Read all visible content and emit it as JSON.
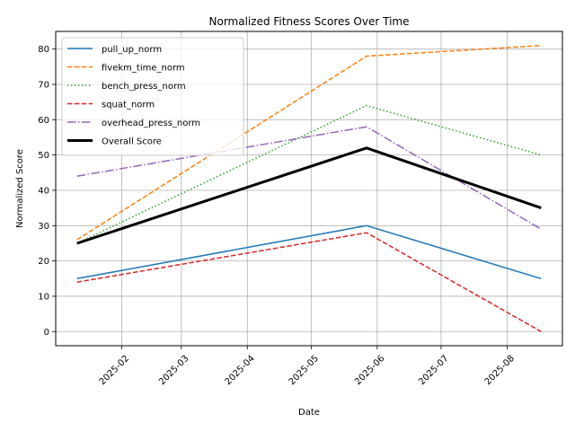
{
  "chart_data": {
    "type": "line",
    "title": "Normalized Fitness Scores Over Time",
    "xlabel": "Date",
    "ylabel": "Normalized Score",
    "x": [
      "2025-01-11",
      "2025-05-27",
      "2025-08-17"
    ],
    "x_ticks": [
      "2025-02",
      "2025-03",
      "2025-04",
      "2025-05",
      "2025-06",
      "2025-07",
      "2025-08"
    ],
    "x_tick_dates": [
      "2025-02-01",
      "2025-03-01",
      "2025-04-01",
      "2025-05-01",
      "2025-06-01",
      "2025-07-01",
      "2025-08-01"
    ],
    "xlim": [
      "2025-01-01",
      "2025-08-27"
    ],
    "y_ticks": [
      0,
      10,
      20,
      30,
      40,
      50,
      60,
      70,
      80
    ],
    "ylim": [
      -4,
      85
    ],
    "grid": true,
    "legend_position": "top-left",
    "series": [
      {
        "name": "pull_up_norm",
        "values": [
          15,
          30,
          15
        ],
        "color": "#1f77b4",
        "style": "solid"
      },
      {
        "name": "fivekm_time_norm",
        "values": [
          26,
          78,
          81
        ],
        "color": "#ff7f0e",
        "style": "dashed"
      },
      {
        "name": "bench_press_norm",
        "values": [
          25,
          64,
          50
        ],
        "color": "#2ca02c",
        "style": "dotted"
      },
      {
        "name": "squat_norm",
        "values": [
          14,
          28,
          0
        ],
        "color": "#d62728",
        "style": "dashed"
      },
      {
        "name": "overhead_press_norm",
        "values": [
          44,
          58,
          29
        ],
        "color": "#9467bd",
        "style": "dashdot"
      },
      {
        "name": "Overall Score",
        "values": [
          25,
          52,
          35
        ],
        "color": "#000000",
        "style": "bold"
      }
    ]
  }
}
